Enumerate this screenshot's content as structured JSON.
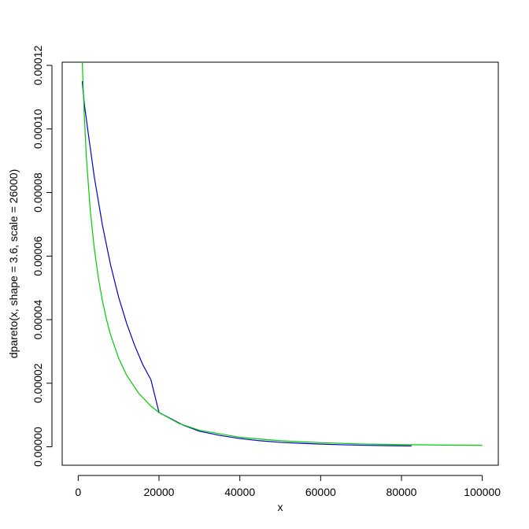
{
  "chart_data": {
    "type": "line",
    "title": "",
    "xlabel": "x",
    "ylabel": "dpareto(x, shape = 3.6, scale = 26000)",
    "xlim": [
      -3960,
      103960
    ],
    "ylim": [
      -5.8e-06,
      0.000121
    ],
    "x_ticks": [
      0,
      20000,
      40000,
      60000,
      80000,
      100000
    ],
    "x_tick_labels": [
      "0",
      "20000",
      "40000",
      "60000",
      "80000",
      "100000"
    ],
    "y_ticks": [
      0,
      2e-05,
      4e-05,
      6e-05,
      8e-05,
      0.0001,
      0.00012
    ],
    "y_tick_labels": [
      "0.00000",
      "0.00002",
      "0.00004",
      "0.00006",
      "0.00008",
      "0.00010",
      "0.00012"
    ],
    "grid": false,
    "legend": "none",
    "series": [
      {
        "color": "#0000cc",
        "x": [
          1000,
          1500,
          2500,
          4000,
          6000,
          8000,
          10000,
          12000,
          14000,
          16000,
          18000,
          20000,
          23000,
          26000,
          30000,
          35000,
          40000,
          45000,
          50000,
          55000,
          60000,
          65000,
          70000,
          75000,
          80000,
          82500
        ],
        "y": [
          0.000115,
          0.000108,
          9.85e-05,
          8.48e-05,
          6.97e-05,
          5.73e-05,
          4.71e-05,
          3.88e-05,
          3.18e-05,
          2.58e-05,
          2.11e-05,
          1.08e-05,
          8.8e-06,
          6.8e-06,
          4.9e-06,
          3.6e-06,
          2.6e-06,
          1.9e-06,
          1.4e-06,
          1.1e-06,
          8.5e-07,
          6.5e-07,
          5e-07,
          4e-07,
          3e-07,
          2.7e-07
        ]
      },
      {
        "color": "#00cc00",
        "x": [
          1000,
          1500,
          2000,
          3000,
          4000,
          5000,
          6000,
          7000,
          8000,
          10000,
          12000,
          15000,
          18000,
          20000,
          25000,
          30000,
          40000,
          50000,
          60000,
          70000,
          80000,
          90000,
          100000
        ],
        "y": [
          0.000121,
          0.0001045,
          9.15e-05,
          7.42e-05,
          6.22e-05,
          5.31e-05,
          4.59e-05,
          4.01e-05,
          3.53e-05,
          2.79e-05,
          2.25e-05,
          1.68e-05,
          1.28e-05,
          1.08e-05,
          7.3e-06,
          5.2e-06,
          3e-06,
          1.9e-06,
          1.3e-06,
          9e-07,
          7e-07,
          5.5e-07,
          4.5e-07
        ]
      }
    ]
  }
}
